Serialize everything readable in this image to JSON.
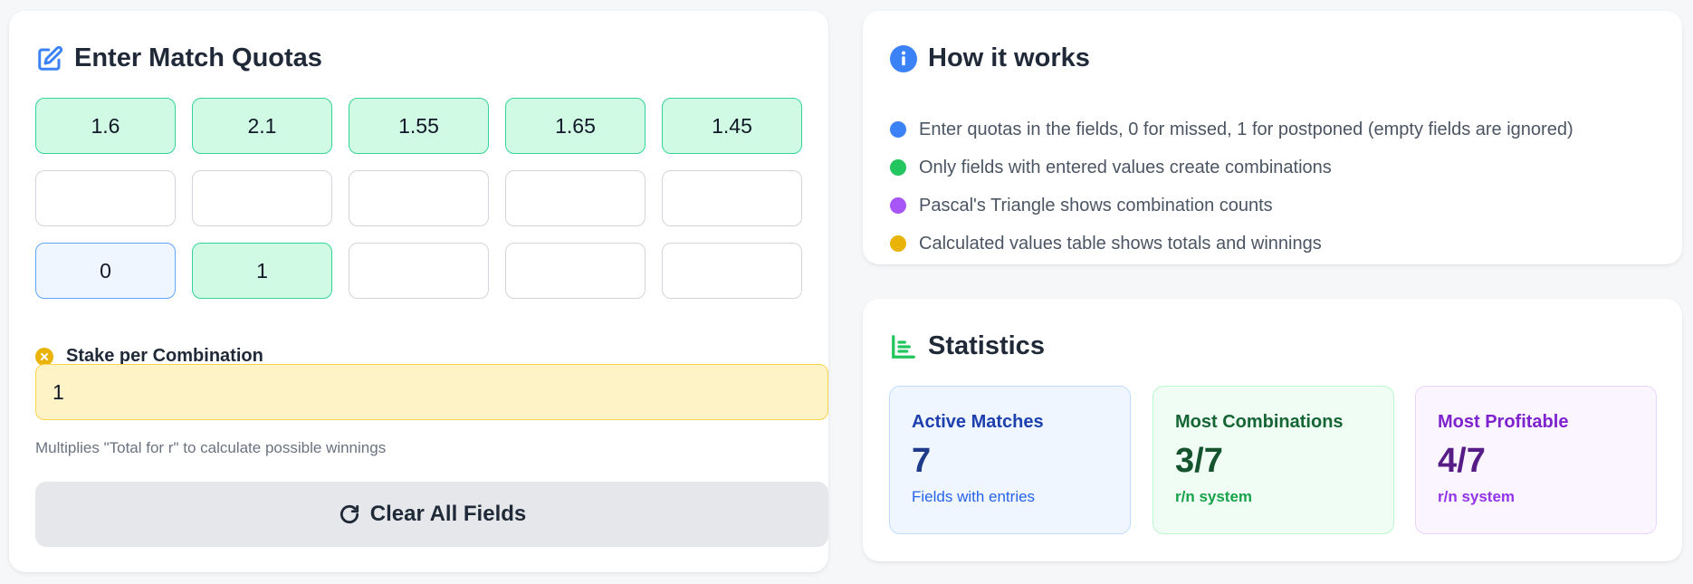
{
  "quota_section": {
    "title": "Enter Match Quotas",
    "icon": "edit-icon",
    "fields": [
      {
        "value": "1.6",
        "state": "filled"
      },
      {
        "value": "2.1",
        "state": "filled"
      },
      {
        "value": "1.55",
        "state": "filled"
      },
      {
        "value": "1.65",
        "state": "filled"
      },
      {
        "value": "1.45",
        "state": "filled"
      },
      {
        "value": "",
        "state": "empty"
      },
      {
        "value": "",
        "state": "empty"
      },
      {
        "value": "",
        "state": "empty"
      },
      {
        "value": "",
        "state": "empty"
      },
      {
        "value": "",
        "state": "empty"
      },
      {
        "value": "0",
        "state": "missed"
      },
      {
        "value": "1",
        "state": "filled"
      },
      {
        "value": "",
        "state": "empty"
      },
      {
        "value": "",
        "state": "empty"
      },
      {
        "value": "",
        "state": "empty"
      }
    ],
    "stake_label": "Stake per Combination",
    "stake_value": "1",
    "stake_help": "Multiplies \"Total for r\" to calculate possible winnings",
    "clear_label": "Clear All Fields"
  },
  "how_it_works": {
    "title": "How it works",
    "icon": "info-icon",
    "items": [
      {
        "text": "Enter quotas in the fields, 0 for missed, 1 for postponed (empty fields are ignored)",
        "color": "#3b82f6"
      },
      {
        "text": "Only fields with entered values create combinations",
        "color": "#22c55e"
      },
      {
        "text": "Pascal's Triangle shows combination counts",
        "color": "#a855f7"
      },
      {
        "text": "Calculated values table shows totals and winnings",
        "color": "#eab308"
      }
    ]
  },
  "statistics": {
    "title": "Statistics",
    "icon": "bar-chart-icon",
    "active": {
      "label": "Active Matches",
      "value": "7",
      "sub": "Fields with entries"
    },
    "combinations": {
      "label": "Most Combinations",
      "value": "3/7",
      "sub": "r/n system"
    },
    "profitable": {
      "label": "Most Profitable",
      "value": "4/7",
      "sub": "r/n system"
    }
  },
  "colors": {
    "filled_bg": "#d1fae5",
    "missed_bg": "#eff6ff",
    "stake_bg": "#fef3c7",
    "accent_blue": "#3b82f6",
    "accent_green": "#22c55e"
  }
}
